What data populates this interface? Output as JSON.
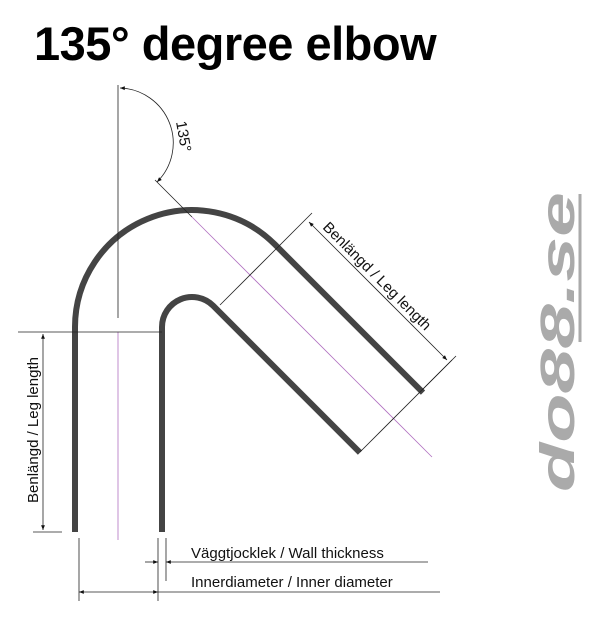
{
  "title": "135° degree elbow",
  "angle_label": "135°",
  "labels": {
    "leg_length_diagonal": "Benlängd / Leg length",
    "leg_length_vertical": "Benlängd / Leg length",
    "wall_thickness": "Väggtjocklek / Wall thickness",
    "inner_diameter": "Innerdiameter / Inner diameter"
  },
  "logo": {
    "text": "do88.se",
    "color": "#aaaaaa"
  },
  "colors": {
    "pipe": "#444444",
    "centerline": "#b070c0",
    "dimension": "#222222"
  }
}
